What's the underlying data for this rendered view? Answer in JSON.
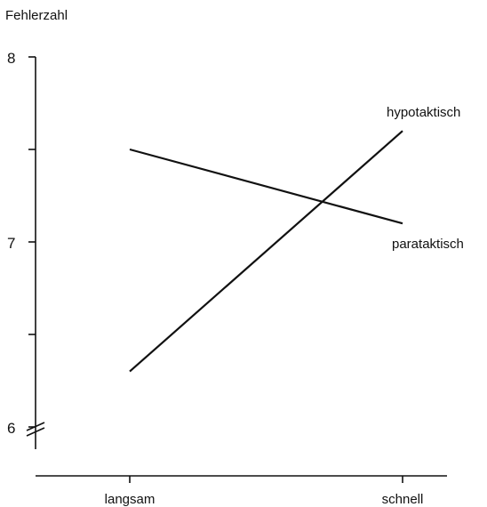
{
  "chart_data": {
    "type": "line",
    "ylabel": "Fehlerzahl",
    "xlabel": "",
    "categories": [
      "langsam",
      "schnell"
    ],
    "ylim": [
      6,
      8
    ],
    "y_ticks": [
      6,
      6.5,
      7,
      7.5,
      8
    ],
    "y_tick_labels": [
      "6",
      "",
      "7",
      "",
      "8"
    ],
    "axis_break": true,
    "grid": false,
    "legend": "labels at line ends (right)",
    "series": [
      {
        "name": "hypotaktisch",
        "values": [
          6.3,
          7.6
        ]
      },
      {
        "name": "parataktisch",
        "values": [
          7.5,
          7.1
        ]
      }
    ]
  }
}
